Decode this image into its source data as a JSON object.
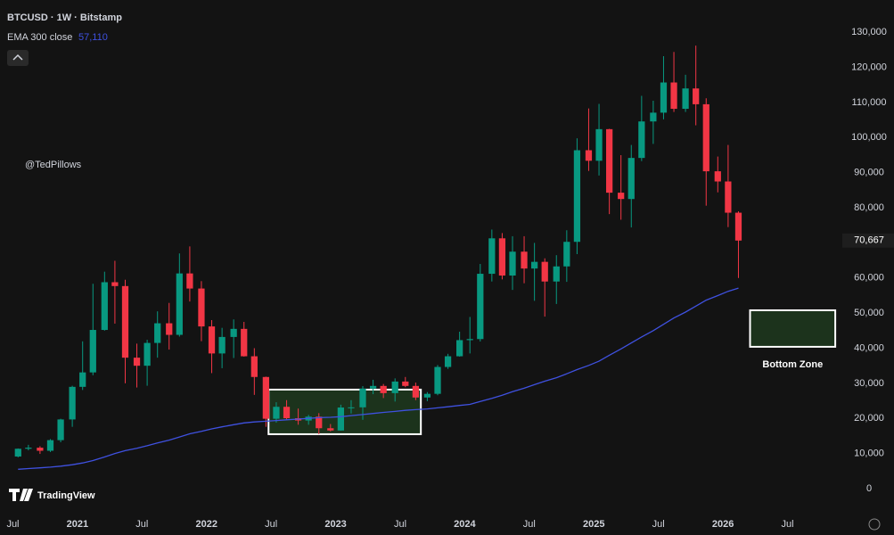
{
  "chart_data": {
    "type": "candlestick",
    "title": "BTCUSD · 1W · Bitstamp",
    "watermark": "@TedPillows",
    "brand": "TradingView",
    "up_color": "#089981",
    "down_color": "#f23645",
    "x": [
      2020.54,
      2020.62,
      2020.71,
      2020.79,
      2020.87,
      2020.96,
      2021.04,
      2021.12,
      2021.21,
      2021.29,
      2021.37,
      2021.46,
      2021.54,
      2021.62,
      2021.71,
      2021.79,
      2021.87,
      2021.96,
      2022.04,
      2022.12,
      2022.21,
      2022.29,
      2022.37,
      2022.46,
      2022.54,
      2022.62,
      2022.71,
      2022.79,
      2022.87,
      2022.96,
      2023.04,
      2023.12,
      2023.21,
      2023.29,
      2023.37,
      2023.46,
      2023.54,
      2023.62,
      2023.71,
      2023.79,
      2023.87,
      2023.96,
      2024.04,
      2024.12,
      2024.21,
      2024.29,
      2024.37,
      2024.46,
      2024.54,
      2024.62,
      2024.71,
      2024.79,
      2024.87,
      2024.96,
      2025.04,
      2025.12,
      2025.21,
      2025.29,
      2025.37,
      2025.46,
      2025.54,
      2025.62,
      2025.71,
      2025.79,
      2025.87,
      2025.96,
      2026.04,
      2026.12
    ],
    "open": [
      9140,
      11350,
      11650,
      10780,
      13800,
      19700,
      28990,
      33100,
      45200,
      58800,
      57700,
      37300,
      35000,
      41500,
      47100,
      43800,
      61300,
      57000,
      46200,
      38500,
      43200,
      45500,
      37700,
      31800,
      19900,
      23300,
      20050,
      19400,
      20500,
      17200,
      16550,
      23100,
      23150,
      28500,
      29250,
      27200,
      30500,
      29250,
      25950,
      27000,
      34650,
      37700,
      42300,
      42600,
      61200,
      71300,
      60700,
      67500,
      62700,
      64600,
      59000,
      63300,
      70300,
      96400,
      93400,
      102400,
      84300,
      82500,
      94200,
      104600,
      107100,
      115700,
      108200,
      114000,
      109500,
      90400,
      87500,
      78600
    ],
    "high": [
      11440,
      12470,
      12080,
      14100,
      19900,
      29300,
      41950,
      58350,
      61800,
      64900,
      59500,
      41300,
      42400,
      50500,
      52900,
      67000,
      69000,
      59100,
      48000,
      45800,
      48200,
      47500,
      40000,
      31900,
      24600,
      25200,
      22800,
      21000,
      21500,
      18400,
      23900,
      25200,
      29200,
      31000,
      29800,
      31400,
      31800,
      30200,
      27500,
      35200,
      38400,
      44700,
      48900,
      64000,
      73800,
      72800,
      71900,
      71900,
      70000,
      65600,
      66500,
      73600,
      99800,
      108300,
      109600,
      102500,
      95000,
      97900,
      111900,
      110500,
      123200,
      124400,
      117900,
      126200,
      111200,
      94600,
      97900,
      79000
    ],
    "low": [
      8900,
      10900,
      9880,
      10420,
      13200,
      17600,
      28100,
      32300,
      45000,
      47000,
      30000,
      28800,
      29300,
      37300,
      39600,
      43300,
      53300,
      42000,
      32900,
      34300,
      37200,
      37600,
      26700,
      17600,
      18800,
      19600,
      18200,
      18200,
      15500,
      16300,
      16500,
      21400,
      19600,
      26900,
      25800,
      24800,
      28900,
      25200,
      24900,
      26600,
      34100,
      37600,
      38500,
      41900,
      59000,
      59600,
      56600,
      58500,
      53500,
      49000,
      52600,
      58900,
      66800,
      90500,
      89200,
      78200,
      76600,
      74400,
      93300,
      98200,
      105200,
      107300,
      107300,
      103500,
      80600,
      84400,
      74500,
      60000
    ],
    "close": [
      11350,
      11650,
      10780,
      13800,
      19700,
      28990,
      33100,
      45200,
      58800,
      57700,
      37300,
      35000,
      41500,
      47100,
      43800,
      61300,
      57000,
      46200,
      38500,
      43200,
      45500,
      37700,
      31800,
      19900,
      23300,
      20050,
      19400,
      20500,
      17200,
      16550,
      23100,
      23150,
      28500,
      29250,
      27200,
      30500,
      29250,
      25950,
      27000,
      34650,
      37700,
      42300,
      42600,
      61200,
      71300,
      60700,
      67500,
      62700,
      64600,
      59000,
      63300,
      70300,
      96400,
      93400,
      102400,
      84300,
      82500,
      94200,
      104600,
      107100,
      115700,
      108200,
      114000,
      109500,
      90400,
      87500,
      78600,
      70667
    ],
    "overlay": {
      "name": "EMA 300 close",
      "color": "#3f51e0",
      "value_label": "57,110",
      "values": [
        5500,
        5700,
        5900,
        6100,
        6400,
        6800,
        7300,
        8000,
        9000,
        10000,
        10800,
        11500,
        12200,
        13000,
        13800,
        14700,
        15600,
        16300,
        17000,
        17600,
        18200,
        18700,
        19000,
        19200,
        19400,
        19600,
        19800,
        20000,
        20200,
        20300,
        20500,
        20800,
        21100,
        21400,
        21700,
        22000,
        22300,
        22500,
        22700,
        23000,
        23300,
        23700,
        24000,
        24800,
        25700,
        26600,
        27600,
        28600,
        29600,
        30600,
        31600,
        32700,
        33900,
        35100,
        36300,
        38000,
        39800,
        41500,
        43200,
        45000,
        46800,
        48600,
        50300,
        52000,
        53700,
        55000,
        56200,
        57110
      ]
    },
    "price_label": {
      "value": 70667,
      "label": "70,667"
    },
    "zones": [
      {
        "x": [
          2022.48,
          2023.66
        ],
        "y": [
          15500,
          28200
        ],
        "color": "#1f3a1f"
      },
      {
        "label": "Bottom Zone",
        "x": [
          2026.21,
          2026.87
        ],
        "y": [
          40400,
          50800
        ],
        "color": "#1f3a1f"
      }
    ],
    "xlim": [
      2020.4,
      2026.89
    ],
    "xticks": [
      {
        "value": 2020.5,
        "label": "Jul"
      },
      2021,
      {
        "value": 2021.5,
        "label": "Jul"
      },
      2022,
      {
        "value": 2022.5,
        "label": "Jul"
      },
      2023,
      {
        "value": 2023.5,
        "label": "Jul"
      },
      2024,
      {
        "value": 2024.5,
        "label": "Jul"
      },
      2025,
      {
        "value": 2025.5,
        "label": "Jul"
      },
      2026,
      {
        "value": 2026.5,
        "label": "Jul"
      }
    ],
    "ylim": [
      -5600,
      139200
    ],
    "yticks": [
      0,
      {
        "value": 10000,
        "label": "10,000"
      },
      {
        "value": 20000,
        "label": "20,000"
      },
      {
        "value": 30000,
        "label": "30,000"
      },
      {
        "value": 40000,
        "label": "40,000"
      },
      {
        "value": 50000,
        "label": "50,000"
      },
      {
        "value": 60000,
        "label": "60,000"
      },
      {
        "value": 70000,
        "label": "70,000"
      },
      {
        "value": 80000,
        "label": "80,000"
      },
      {
        "value": 90000,
        "label": "90,000"
      },
      {
        "value": 100000,
        "label": "100,000"
      },
      {
        "value": 110000,
        "label": "110,000"
      },
      {
        "value": 120000,
        "label": "120,000"
      },
      {
        "value": 130000,
        "label": "130,000"
      }
    ],
    "grid": false
  }
}
